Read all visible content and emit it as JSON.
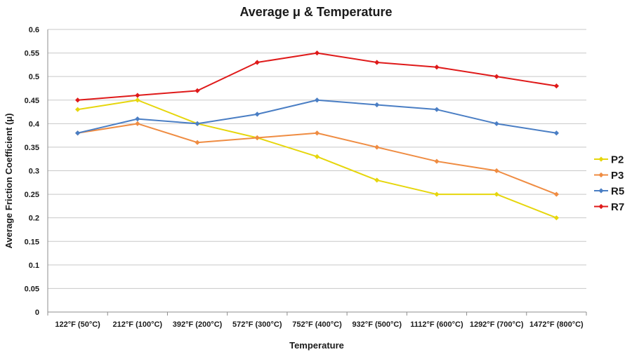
{
  "chart_data": {
    "type": "line",
    "title": "Average μ & Temperature",
    "xlabel": "Temperature",
    "ylabel": "Average Friction Coefficient (μ)",
    "categories": [
      "122°F (50°C)",
      "212°F (100°C)",
      "392°F (200°C)",
      "572°F (300°C)",
      "752°F (400°C)",
      "932°F (500°C)",
      "1112°F (600°C)",
      "1292°F (700°C)",
      "1472°F (800°C)"
    ],
    "ylim": [
      0,
      0.6
    ],
    "yticks": [
      "0",
      "0.05",
      "0.1",
      "0.15",
      "0.2",
      "0.25",
      "0.3",
      "0.35",
      "0.4",
      "0.45",
      "0.5",
      "0.55",
      "0.6"
    ],
    "grid": true,
    "legend_position": "right",
    "series": [
      {
        "name": "P2",
        "color": "#e6d60c",
        "values": [
          0.43,
          0.45,
          0.4,
          0.37,
          0.33,
          0.28,
          0.25,
          0.25,
          0.2
        ]
      },
      {
        "name": "P3",
        "color": "#ef8c42",
        "values": [
          0.38,
          0.4,
          0.36,
          0.37,
          0.38,
          0.35,
          0.32,
          0.3,
          0.25
        ]
      },
      {
        "name": "R5",
        "color": "#4a7ec4",
        "values": [
          0.38,
          0.41,
          0.4,
          0.42,
          0.45,
          0.44,
          0.43,
          0.4,
          0.38
        ]
      },
      {
        "name": "R7",
        "color": "#df1a1a",
        "values": [
          0.45,
          0.46,
          0.47,
          0.53,
          0.55,
          0.53,
          0.52,
          0.5,
          0.48
        ]
      }
    ]
  }
}
